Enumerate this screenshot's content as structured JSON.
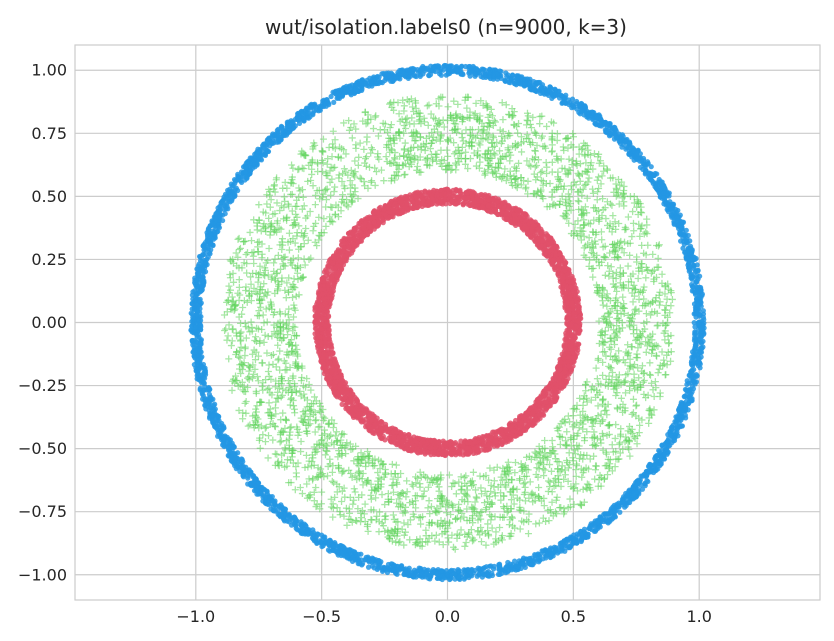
{
  "chart_data": {
    "type": "scatter",
    "title": "wut/isolation.labels0 (n=9000, k=3)",
    "xlabel": "",
    "ylabel": "",
    "xlim": [
      -1.48,
      1.48
    ],
    "ylim": [
      -1.1,
      1.1
    ],
    "x_ticks": [
      -1.0,
      -0.5,
      0.0,
      0.5,
      1.0
    ],
    "x_tick_labels": [
      "−1.0",
      "−0.5",
      "0.0",
      "0.5",
      "1.0"
    ],
    "y_ticks": [
      1.0,
      0.75,
      0.5,
      0.25,
      0.0,
      -0.25,
      -0.5,
      -0.75,
      -1.0
    ],
    "y_tick_labels": [
      "1.00",
      "0.75",
      "0.50",
      "0.25",
      "0.00",
      "−0.25",
      "−0.50",
      "−0.75",
      "−1.00"
    ],
    "grid": true,
    "legend": "none",
    "series": [
      {
        "marker": "circle",
        "color": "#2396e4",
        "shape": "ring",
        "center": [
          0,
          0
        ],
        "radius_min": 0.98,
        "radius_max": 1.02,
        "points": 3000
      },
      {
        "marker": "plus",
        "color": "#5ed35b",
        "shape": "ring",
        "center": [
          0,
          0
        ],
        "radius_min": 0.6,
        "radius_max": 0.9,
        "points": 3000
      },
      {
        "marker": "circle",
        "color": "#e0506a",
        "shape": "ring",
        "center": [
          0,
          0
        ],
        "radius_min": 0.47,
        "radius_max": 0.53,
        "points": 3000
      }
    ]
  }
}
